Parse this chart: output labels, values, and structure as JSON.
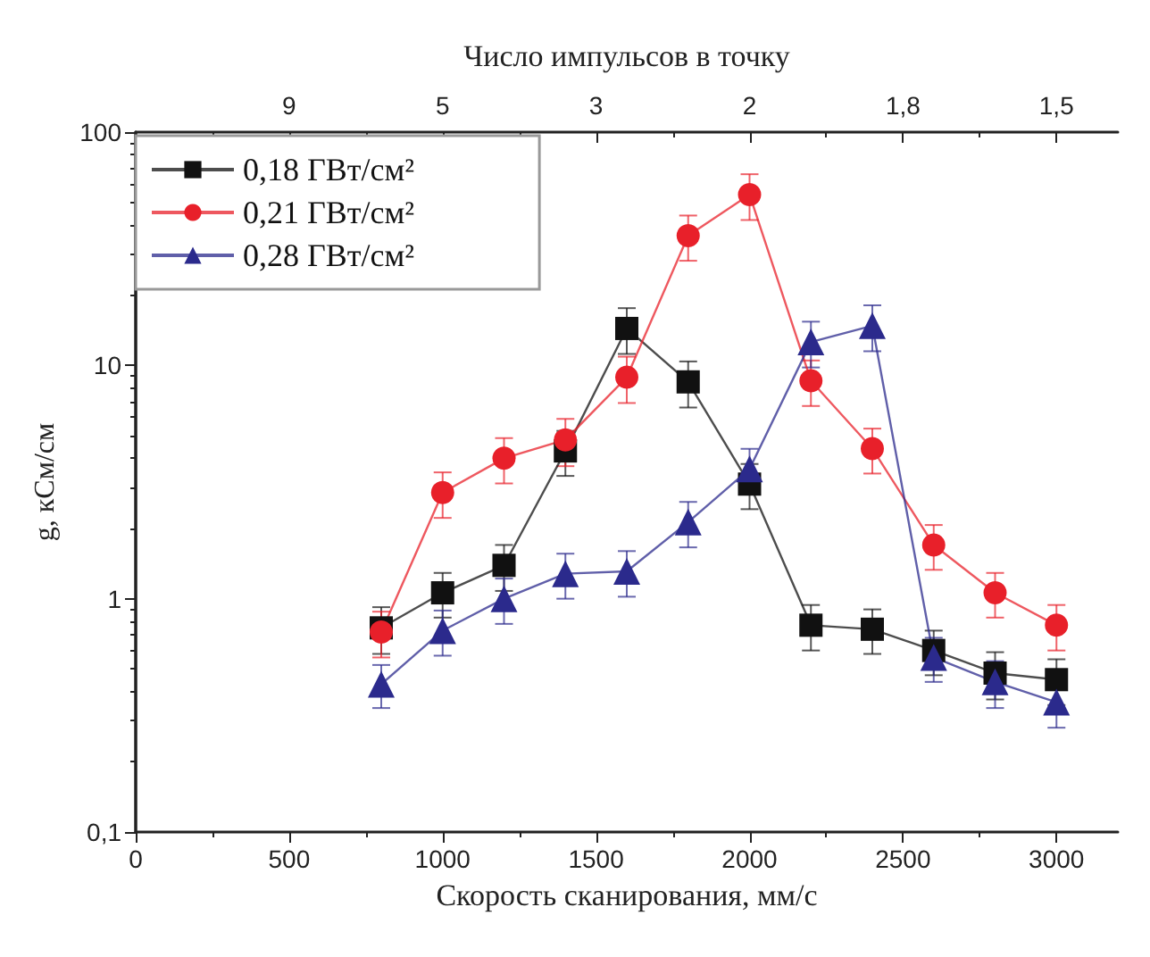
{
  "chart_data": {
    "type": "line",
    "xlabel": "Скорость сканирования, мм/с",
    "ylabel": "g, кСм/см",
    "x2label": "Число импульсов в точку",
    "x": [
      800,
      1000,
      1200,
      1400,
      1600,
      1800,
      2000,
      2200,
      2400,
      2600,
      2800,
      3000
    ],
    "series": [
      {
        "name": "0,18 ГВт/см²",
        "color": "#111111",
        "marker": "square",
        "values": [
          0.75,
          1.06,
          1.39,
          4.3,
          14.4,
          8.5,
          3.1,
          0.77,
          0.74,
          0.6,
          0.48,
          0.45
        ],
        "errors": [
          0.17,
          0.23,
          0.31,
          0.94,
          3.2,
          1.9,
          0.68,
          0.17,
          0.16,
          0.13,
          0.11,
          0.1
        ]
      },
      {
        "name": "0,21 ГВт/см²",
        "color": "#e8202a",
        "marker": "circle",
        "values": [
          0.72,
          2.85,
          4.0,
          4.8,
          8.9,
          36,
          54,
          8.6,
          4.4,
          1.7,
          1.06,
          0.77
        ],
        "errors": [
          0.16,
          0.63,
          0.88,
          1.1,
          2,
          7.9,
          12,
          1.9,
          0.96,
          0.37,
          0.23,
          0.17
        ]
      },
      {
        "name": "0,28 ГВт/см²",
        "color": "#2b2a8c",
        "marker": "triangle",
        "values": [
          0.43,
          0.73,
          1.0,
          1.28,
          1.31,
          2.13,
          3.6,
          12.6,
          14.8,
          0.56,
          0.44,
          0.36
        ],
        "errors": [
          0.09,
          0.16,
          0.22,
          0.28,
          0.29,
          0.47,
          0.79,
          2.8,
          3.3,
          0.12,
          0.1,
          0.08
        ]
      }
    ],
    "xlim": [
      0,
      3200
    ],
    "xticks": [
      0,
      500,
      1000,
      1500,
      2000,
      2500,
      3000
    ],
    "annotations": [
      "9",
      "5",
      "3",
      "2",
      "1,8",
      "1,5"
    ],
    "ylim": [
      0.1,
      100
    ],
    "yticks": [
      {
        "value": 0.1,
        "label": "0,1"
      },
      1,
      10,
      100
    ],
    "log": "y",
    "grid": false,
    "legend": "top left",
    "line_style": "solid"
  }
}
